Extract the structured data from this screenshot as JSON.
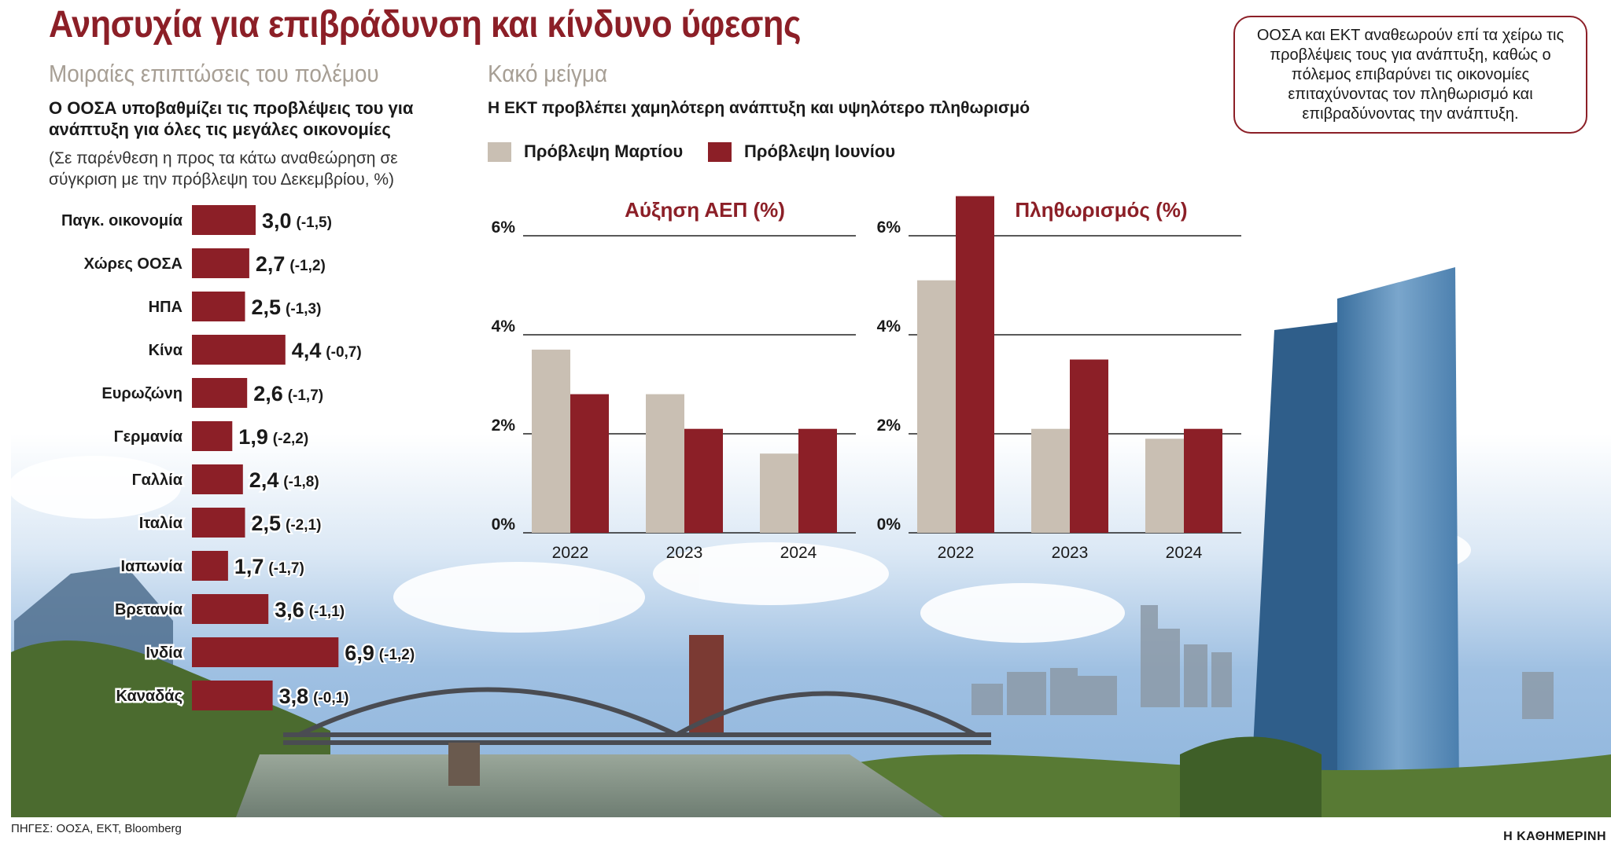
{
  "title": "Ανησυχία για επιβράδυνση και κίνδυνο ύφεσης",
  "left_panel": {
    "heading": "Μοιραίες επιπτώσεις του πολέμου",
    "subheading": "Ο ΟΟΣΑ υποβαθμίζει τις προβλέψεις του για ανάπτυξη για όλες τις μεγάλες οικονομίες",
    "note": "(Σε παρένθεση η προς τα κάτω αναθεώρηση σε σύγκριση με την πρόβλεψη του Δεκεμβρίου, %)"
  },
  "middle_panel": {
    "heading": "Κακό μείγμα",
    "subheading": "Η ΕΚΤ προβλέπει χαμηλότερη ανάπτυξη και υψηλότερο πληθωρισμό",
    "legend": [
      "Πρόβλεψη Μαρτίου",
      "Πρόβλεψη Ιουνίου"
    ]
  },
  "callout": "ΟΟΣΑ και ΕΚΤ αναθεωρούν επί τα χείρω τις προβλέψεις τους για ανάπτυξη, καθώς ο πόλεμος επιβαρύνει τις οικονομίες επιταχύνοντας τον πληθωρισμό και επιβραδύνοντας την ανάπτυξη.",
  "source": "ΠΗΓΕΣ: ΟΟΣΑ, ΕΚΤ, Bloomberg",
  "credit": "Η ΚΑΘΗΜΕΡΙΝΗ",
  "colors": {
    "accent": "#8c1f27",
    "march": "#c9bfb3",
    "june": "#8c1f27",
    "heading_gray": "#a79f95"
  },
  "chart_data": [
    {
      "type": "bar",
      "orientation": "horizontal",
      "categories": [
        "Παγκ. οικονομία",
        "Χώρες ΟΟΣΑ",
        "ΗΠΑ",
        "Κίνα",
        "Ευρωζώνη",
        "Γερμανία",
        "Γαλλία",
        "Ιταλία",
        "Ιαπωνία",
        "Βρετανία",
        "Ινδία",
        "Καναδάς"
      ],
      "values": [
        3.0,
        2.7,
        2.5,
        4.4,
        2.6,
        1.9,
        2.4,
        2.5,
        1.7,
        3.6,
        6.9,
        3.8
      ],
      "value_labels": [
        "3,0",
        "2,7",
        "2,5",
        "4,4",
        "2,6",
        "1,9",
        "2,4",
        "2,5",
        "1,7",
        "3,6",
        "6,9",
        "3,8"
      ],
      "revision_labels": [
        "(-1,5)",
        "(-1,2)",
        "(-1,3)",
        "(-0,7)",
        "(-1,7)",
        "(-2,2)",
        "(-1,8)",
        "(-2,1)",
        "(-1,7)",
        "(-1,1)",
        "(-1,2)",
        "(-0,1)"
      ],
      "revisions": [
        -1.5,
        -1.2,
        -1.3,
        -0.7,
        -1.7,
        -2.2,
        -1.8,
        -2.1,
        -1.7,
        -1.1,
        -1.2,
        -0.1
      ]
    },
    {
      "type": "bar",
      "title": "Αύξηση ΑΕΠ (%)",
      "categories": [
        "2022",
        "2023",
        "2024"
      ],
      "series": [
        {
          "name": "Πρόβλεψη Μαρτίου",
          "values": [
            3.7,
            2.8,
            1.6
          ]
        },
        {
          "name": "Πρόβλεψη Ιουνίου",
          "values": [
            2.8,
            2.1,
            2.1
          ]
        }
      ],
      "ylim": [
        0,
        6
      ],
      "yticks": [
        "0%",
        "2%",
        "4%",
        "6%"
      ],
      "grid": true
    },
    {
      "type": "bar",
      "title": "Πληθωρισμός (%)",
      "categories": [
        "2022",
        "2023",
        "2024"
      ],
      "series": [
        {
          "name": "Πρόβλεψη Μαρτίου",
          "values": [
            5.1,
            2.1,
            1.9
          ]
        },
        {
          "name": "Πρόβλεψη Ιουνίου",
          "values": [
            6.8,
            3.5,
            2.1
          ]
        }
      ],
      "ylim": [
        0,
        6
      ],
      "yticks": [
        "0%",
        "2%",
        "4%",
        "6%"
      ],
      "grid": true
    }
  ]
}
